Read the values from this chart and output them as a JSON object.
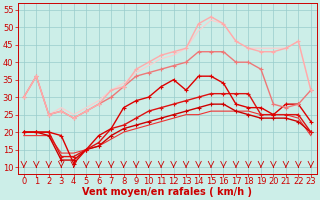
{
  "background_color": "#cceee8",
  "grid_color": "#99cccc",
  "xlabel": "Vent moyen/en rafales ( km/h )",
  "xlim": [
    -0.5,
    23.5
  ],
  "ylim": [
    8,
    57
  ],
  "yticks": [
    10,
    15,
    20,
    25,
    30,
    35,
    40,
    45,
    50,
    55
  ],
  "xticks": [
    0,
    1,
    2,
    3,
    4,
    5,
    6,
    7,
    8,
    9,
    10,
    11,
    12,
    13,
    14,
    15,
    16,
    17,
    18,
    19,
    20,
    21,
    22,
    23
  ],
  "lines": [
    {
      "x": [
        0,
        1,
        2,
        3,
        4,
        5,
        6,
        7,
        8,
        9,
        10,
        11,
        12,
        13,
        14,
        15,
        16,
        17,
        18,
        19,
        20,
        21,
        22,
        23
      ],
      "y": [
        20,
        20,
        19,
        12,
        12,
        15,
        16,
        19,
        21,
        22,
        23,
        24,
        25,
        26,
        27,
        28,
        28,
        26,
        25,
        24,
        24,
        24,
        23,
        20
      ],
      "color": "#cc0000",
      "lw": 1.0,
      "marker": "+",
      "ms": 3.5
    },
    {
      "x": [
        0,
        1,
        2,
        3,
        4,
        5,
        6,
        7,
        8,
        9,
        10,
        11,
        12,
        13,
        14,
        15,
        16,
        17,
        18,
        19,
        20,
        21,
        22,
        23
      ],
      "y": [
        20,
        20,
        20,
        13,
        13,
        15,
        17,
        21,
        22,
        24,
        26,
        27,
        28,
        29,
        30,
        31,
        31,
        31,
        31,
        25,
        25,
        25,
        25,
        20
      ],
      "color": "#dd1111",
      "lw": 1.0,
      "marker": "+",
      "ms": 3.5
    },
    {
      "x": [
        0,
        1,
        2,
        3,
        4,
        5,
        6,
        7,
        8,
        9,
        10,
        11,
        12,
        13,
        14,
        15,
        16,
        17,
        18,
        19,
        20,
        21,
        22,
        23
      ],
      "y": [
        19,
        19,
        19,
        14,
        14,
        15,
        16,
        18,
        20,
        21,
        22,
        23,
        24,
        25,
        25,
        26,
        26,
        26,
        26,
        25,
        25,
        25,
        24,
        19
      ],
      "color": "#ee3333",
      "lw": 0.8,
      "marker": null,
      "ms": 0
    },
    {
      "x": [
        0,
        1,
        2,
        3,
        4,
        5,
        6,
        7,
        8,
        9,
        10,
        11,
        12,
        13,
        14,
        15,
        16,
        17,
        18,
        19,
        20,
        21,
        22,
        23
      ],
      "y": [
        20,
        20,
        20,
        19,
        11,
        15,
        19,
        21,
        27,
        29,
        30,
        33,
        35,
        32,
        36,
        36,
        34,
        28,
        27,
        27,
        25,
        28,
        28,
        23
      ],
      "color": "#dd0000",
      "lw": 1.0,
      "marker": "+",
      "ms": 3.5
    },
    {
      "x": [
        0,
        1,
        2,
        3,
        4,
        5,
        6,
        7,
        8,
        9,
        10,
        11,
        12,
        13,
        14,
        15,
        16,
        17,
        18,
        19,
        20,
        21,
        22,
        23
      ],
      "y": [
        30,
        36,
        25,
        26,
        24,
        26,
        28,
        30,
        33,
        36,
        37,
        38,
        39,
        40,
        43,
        43,
        43,
        40,
        40,
        38,
        28,
        27,
        28,
        32
      ],
      "color": "#ee7777",
      "lw": 1.0,
      "marker": "+",
      "ms": 3.0
    },
    {
      "x": [
        0,
        1,
        2,
        3,
        4,
        5,
        6,
        7,
        8,
        9,
        10,
        11,
        12,
        13,
        14,
        15,
        16,
        17,
        18,
        19,
        20,
        21,
        22,
        23
      ],
      "y": [
        30,
        36,
        25,
        26,
        24,
        26,
        28,
        32,
        33,
        38,
        40,
        42,
        43,
        44,
        51,
        53,
        51,
        46,
        44,
        43,
        43,
        44,
        46,
        32
      ],
      "color": "#ffaaaa",
      "lw": 1.0,
      "marker": "+",
      "ms": 3.0
    },
    {
      "x": [
        0,
        1,
        2,
        3,
        4,
        5,
        6,
        7,
        8,
        9,
        10,
        11,
        12,
        13,
        14,
        15,
        16,
        17,
        18,
        19,
        20,
        21,
        22,
        23
      ],
      "y": [
        30,
        36,
        25,
        27,
        25,
        27,
        29,
        32,
        34,
        37,
        39,
        41,
        42,
        44,
        49,
        52,
        51,
        46,
        44,
        44,
        44,
        44,
        46,
        32
      ],
      "color": "#ffcccc",
      "lw": 0.8,
      "marker": null,
      "ms": 0
    }
  ],
  "arrow_color": "#cc0000",
  "axis_label_fontsize": 7,
  "tick_fontsize": 6
}
